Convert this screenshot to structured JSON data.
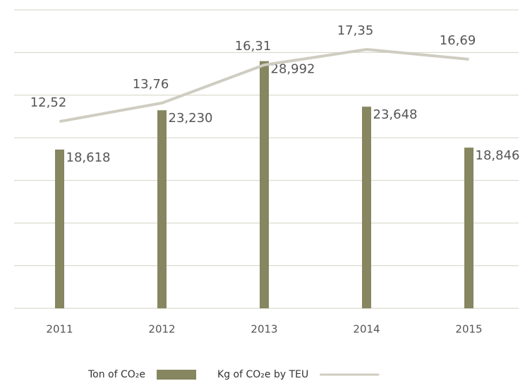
{
  "chart_data": {
    "type": "bar",
    "categories": [
      "2011",
      "2012",
      "2013",
      "2014",
      "2015"
    ],
    "series": [
      {
        "name": "Ton of CO₂e",
        "type": "bar",
        "color": "#868660",
        "values": [
          18618,
          23230,
          28992,
          23648,
          18846
        ],
        "value_labels": [
          "18,618",
          "23,230",
          "28,992",
          "23,648",
          "18,846"
        ]
      },
      {
        "name": "Kg of CO₂e by TEU",
        "type": "line",
        "axis": "y2",
        "color": "#cfcdc1",
        "values": [
          12.52,
          13.76,
          16.31,
          17.35,
          16.69
        ],
        "value_labels": [
          "12,52",
          "13,76",
          "16,31",
          "17,35",
          "16,69"
        ]
      }
    ],
    "ylim": [
      0,
      35000
    ],
    "yticks": [
      0,
      5000,
      10000,
      15000,
      20000,
      25000,
      30000,
      35000
    ],
    "y2lim": [
      0,
      20
    ],
    "grid": true,
    "legend": "bottom"
  }
}
